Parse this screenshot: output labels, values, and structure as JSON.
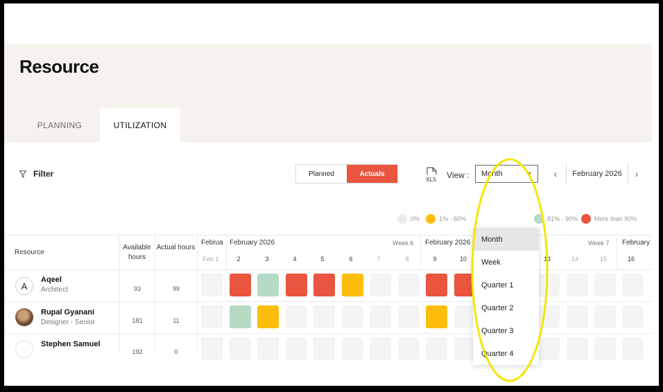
{
  "page": {
    "title": "Resource"
  },
  "tabs": [
    {
      "label": "PLANNING"
    },
    {
      "label": "UTILIZATION"
    }
  ],
  "toolbar": {
    "filter_label": "Filter",
    "toggle": [
      "Planned",
      "Actuals"
    ],
    "view_label": "View :",
    "view_value": "Month",
    "nav_month": "February 2026"
  },
  "legend": [
    {
      "label": "0%",
      "color": "#ececec"
    },
    {
      "label": "1% - 60%",
      "color": "#fdbd0b"
    },
    {
      "label": "81% - 90%",
      "color": "#b6dac4"
    },
    {
      "label": "More than 90%",
      "color": "#e9553f"
    }
  ],
  "dropdown": {
    "options": [
      "Month",
      "Week",
      "Quarter 1",
      "Quarter 2",
      "Quarter 3",
      "Quarter 4"
    ],
    "selected": "Month"
  },
  "table": {
    "headers": {
      "resource": "Resource",
      "available": "Available hours",
      "actual": "Actual hours"
    },
    "months": [
      "Februa",
      "February 2026",
      "February 2026",
      "February"
    ],
    "weeks": [
      "Week 6",
      "Week 7"
    ],
    "days": [
      "Feb 1",
      "2",
      "3",
      "4",
      "5",
      "6",
      "7",
      "8",
      "9",
      "10",
      "13",
      "14",
      "15",
      "16"
    ],
    "rows": [
      {
        "name": "Aqeel",
        "role": "Architect",
        "available": "93",
        "actual": "99",
        "initial": "A",
        "cells": [
          "empty",
          "red",
          "green",
          "red",
          "red",
          "yellow",
          "empty",
          "empty",
          "red",
          "red"
        ]
      },
      {
        "name": "Rupal Gyanani",
        "role": "Designer - Senior",
        "available": "181",
        "actual": "11",
        "initial": "",
        "cells": [
          "empty",
          "green",
          "yellow",
          "empty",
          "empty",
          "empty",
          "empty",
          "empty",
          "yellow",
          "empty"
        ]
      },
      {
        "name": "Stephen Samuel",
        "role": "",
        "available": "192",
        "actual": "0",
        "initial": "",
        "cells": [
          "empty",
          "empty",
          "empty",
          "empty",
          "empty",
          "empty",
          "empty",
          "empty",
          "empty",
          "empty"
        ]
      }
    ]
  },
  "colors": {
    "accent": "#e9553f",
    "highlight": "#f3e600"
  }
}
